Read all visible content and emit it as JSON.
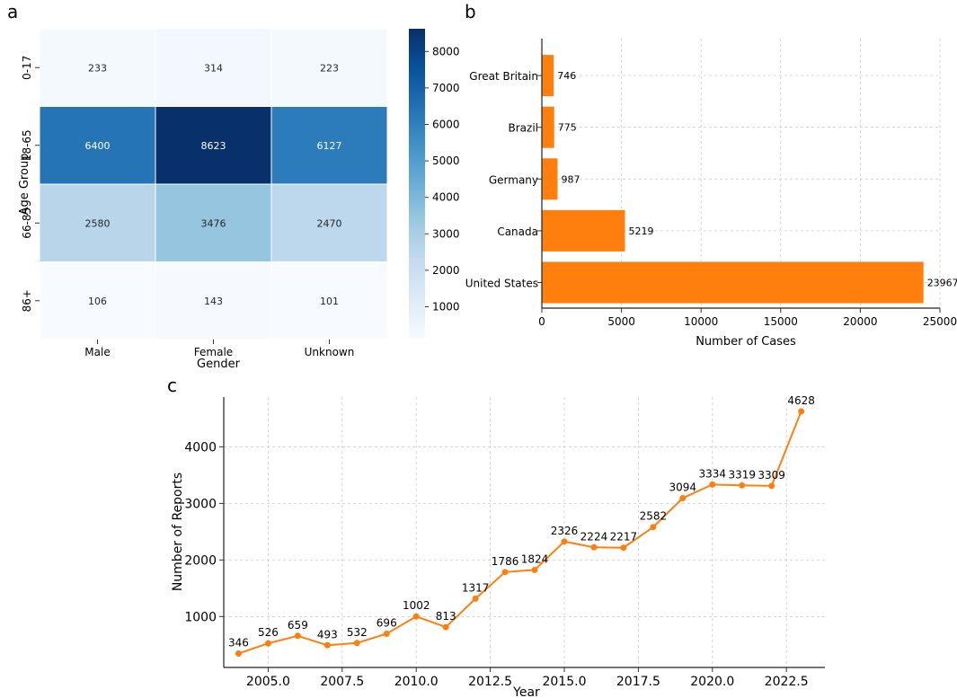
{
  "panels": {
    "a": "a",
    "b": "b",
    "c": "c"
  },
  "chart_data": [
    {
      "type": "heatmap",
      "panel": "a",
      "title": "",
      "xlabel": "Gender",
      "ylabel": "Age Group",
      "columns": [
        "Male",
        "Female",
        "Unknown"
      ],
      "rows": [
        "0-17",
        "18-65",
        "66-85",
        "86+"
      ],
      "values": [
        [
          233,
          314,
          223
        ],
        [
          6400,
          8623,
          6127
        ],
        [
          2580,
          3476,
          2470
        ],
        [
          106,
          143,
          101
        ]
      ],
      "colorbar": {
        "range": [
          101,
          8623
        ],
        "ticks": [
          1000,
          2000,
          3000,
          4000,
          5000,
          6000,
          7000,
          8000
        ]
      }
    },
    {
      "type": "bar",
      "orientation": "horizontal",
      "panel": "b",
      "title": "",
      "xlabel": "Number of Cases",
      "ylabel": "",
      "categories": [
        "United States",
        "Canada",
        "Germany",
        "Brazil",
        "Great Britain"
      ],
      "values": [
        23967,
        5219,
        987,
        775,
        746
      ],
      "xlim": [
        0,
        25000
      ],
      "xticks": [
        0,
        5000,
        10000,
        15000,
        20000,
        25000
      ],
      "grid": true,
      "color": "#ff7f0e"
    },
    {
      "type": "line",
      "panel": "c",
      "title": "",
      "xlabel": "Year",
      "ylabel": "Number of Reports",
      "x": [
        2004,
        2005,
        2006,
        2007,
        2008,
        2009,
        2010,
        2011,
        2012,
        2013,
        2014,
        2015,
        2016,
        2017,
        2018,
        2019,
        2020,
        2021,
        2022,
        2023
      ],
      "values": [
        346,
        526,
        659,
        493,
        532,
        696,
        1002,
        813,
        1317,
        1786,
        1824,
        2326,
        2224,
        2217,
        2582,
        3094,
        3334,
        3319,
        3309,
        4628
      ],
      "xticks": [
        2005.0,
        2007.5,
        2010.0,
        2012.5,
        2015.0,
        2017.5,
        2020.0,
        2022.5
      ],
      "xtick_labels": [
        "2005.0",
        "2007.5",
        "2010.0",
        "2012.5",
        "2015.0",
        "2017.5",
        "2020.0",
        "2022.5"
      ],
      "yticks": [
        1000,
        2000,
        3000,
        4000
      ],
      "xlim": [
        2003.5,
        2023.8
      ],
      "ylim": [
        100,
        4880
      ],
      "grid": true,
      "color": "#ff7f0e"
    }
  ]
}
